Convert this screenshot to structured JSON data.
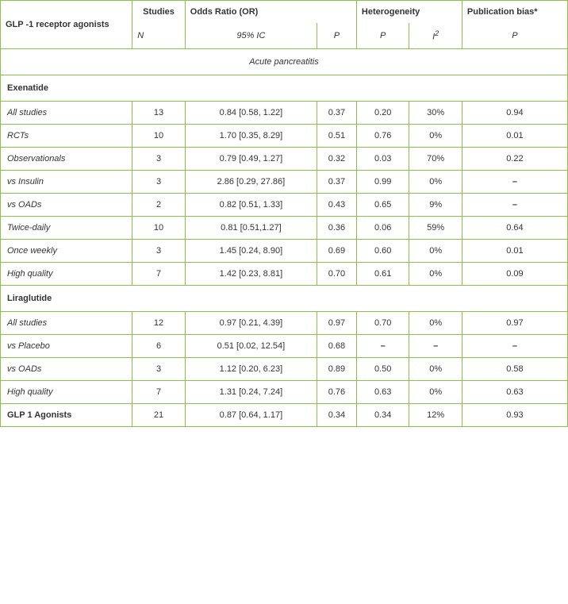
{
  "headers": {
    "agonist": "GLP -1 receptor agonists",
    "studies": "Studies",
    "or": "Odds Ratio (OR)",
    "het": "Heterogeneity",
    "pub": "Publication bias*",
    "n": "N",
    "ci": "95%  IC",
    "p": "P",
    "hp": "P",
    "i2": "I",
    "i2sup": "2",
    "pbp": "P"
  },
  "section": "Acute pancreatitis",
  "groups": [
    {
      "title": "Exenatide",
      "rows": [
        {
          "label": "All studies",
          "n": "13",
          "or": "0.84  [0.58, 1.22]",
          "p": "0.37",
          "hp": "0.20",
          "i2": "30%",
          "pb": "0.94",
          "bold": false
        },
        {
          "label": "RCTs",
          "n": "10",
          "or": "1.70   [0.35, 8.29]",
          "p": "0.51",
          "hp": "0.76",
          "i2": "0%",
          "pb": "0.01",
          "bold": false
        },
        {
          "label": "Observationals",
          "n": "3",
          "or": "0.79  [0.49, 1.27]",
          "p": "0.32",
          "hp": "0.03",
          "i2": "70%",
          "pb": "0.22",
          "bold": false
        },
        {
          "label": "vs Insulin",
          "n": "3",
          "or": "2.86  [0.29, 27.86]",
          "p": "0.37",
          "hp": "0.99",
          "i2": "0%",
          "pb": "–",
          "bold": false
        },
        {
          "label": "vs OADs",
          "n": "2",
          "or": "0.82  [0.51, 1.33]",
          "p": "0.43",
          "hp": "0.65",
          "i2": "9%",
          "pb": "–",
          "bold": false
        },
        {
          "label": "Twice-daily",
          "n": "10",
          "or": "0.81   [0.51,1.27]",
          "p": "0.36",
          "hp": "0.06",
          "i2": "59%",
          "pb": "0.64",
          "bold": false
        },
        {
          "label": "Once weekly",
          "n": "3",
          "or": "1.45  [0.24, 8.90]",
          "p": "0.69",
          "hp": "0.60",
          "i2": "0%",
          "pb": "0.01",
          "bold": false
        },
        {
          "label": "High quality",
          "n": "7",
          "or": "1.42   [0.23, 8.81]",
          "p": "0.70",
          "hp": "0.61",
          "i2": "0%",
          "pb": "0.09",
          "bold": false
        }
      ]
    },
    {
      "title": "Liraglutide",
      "rows": [
        {
          "label": "All studies",
          "n": "12",
          "or": "0.97   [0.21, 4.39]",
          "p": "0.97",
          "hp": "0.70",
          "i2": "0%",
          "pb": "0.97",
          "bold": false
        },
        {
          "label": "vs Placebo",
          "n": "6",
          "or": "0.51  [0.02, 12.54]",
          "p": "0.68",
          "hp": "–",
          "i2": "–",
          "pb": "–",
          "bold": false
        },
        {
          "label": "vs OADs",
          "n": "3",
          "or": "1.12   [0.20, 6.23]",
          "p": "0.89",
          "hp": "0.50",
          "i2": "0%",
          "pb": "0.58",
          "bold": false
        },
        {
          "label": "High quality",
          "n": "7",
          "or": "1.31   [0.24, 7.24]",
          "p": "0.76",
          "hp": "0.63",
          "i2": "0%",
          "pb": "0.63",
          "bold": false
        }
      ]
    },
    {
      "title": null,
      "rows": [
        {
          "label": "GLP 1 Agonists",
          "n": "21",
          "or": "0.87  [0.64, 1.17]",
          "p": "0.34",
          "hp": "0.34",
          "i2": "12%",
          "pb": "0.93",
          "bold": true
        }
      ]
    }
  ],
  "style": {
    "border_color": "#8bc34a",
    "font_family": "Verdana",
    "base_font_size": 11
  }
}
